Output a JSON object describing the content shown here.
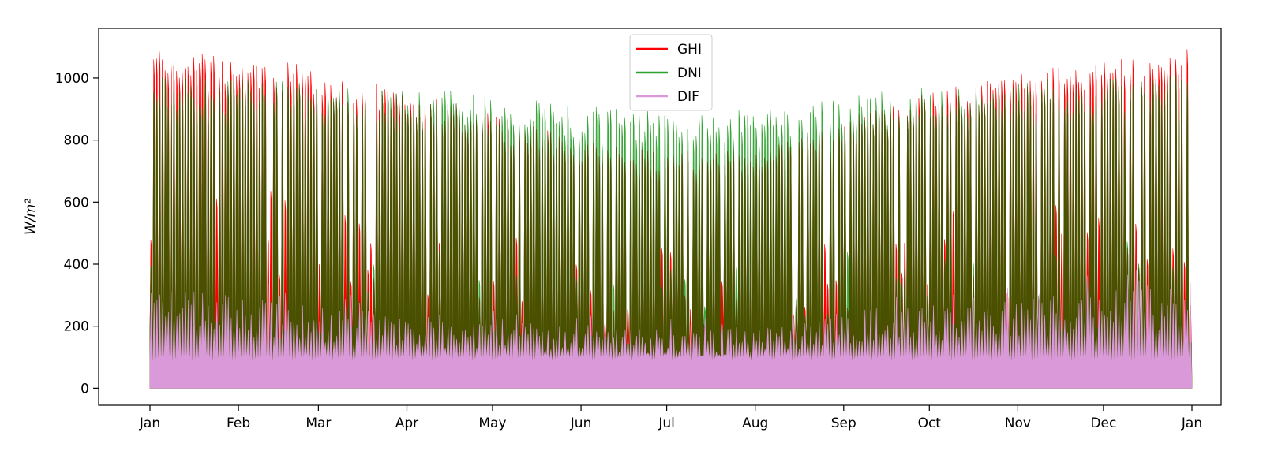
{
  "chart_data": {
    "type": "area",
    "ylabel": "W/m²",
    "xlim": [
      "Jan",
      "Jan"
    ],
    "ylim": [
      -55,
      1160
    ],
    "yticks": [
      0,
      200,
      400,
      600,
      800,
      1000
    ],
    "xticks": [
      "Jan",
      "Feb",
      "Mar",
      "Apr",
      "May",
      "Jun",
      "Jul",
      "Aug",
      "Sep",
      "Oct",
      "Nov",
      "Dec",
      "Jan"
    ],
    "grid": false,
    "legend_position": "top-center",
    "months": [
      "Jan",
      "Feb",
      "Mar",
      "Apr",
      "May",
      "Jun",
      "Jul",
      "Aug",
      "Sep",
      "Oct",
      "Nov",
      "Dec"
    ],
    "series": [
      {
        "name": "GHI",
        "color": "#ff0000",
        "monthly_peak": [
          1090,
          1060,
          990,
          920,
          840,
          780,
          760,
          810,
          920,
          990,
          1040,
          1100
        ]
      },
      {
        "name": "DNI",
        "color": "#2ca02c",
        "monthly_peak": [
          1010,
          990,
          980,
          960,
          930,
          900,
          890,
          920,
          960,
          990,
          1000,
          1010
        ]
      },
      {
        "name": "DIF",
        "color": "#da9ada",
        "monthly_peak": [
          330,
          280,
          250,
          230,
          220,
          200,
          190,
          200,
          280,
          280,
          300,
          330
        ]
      }
    ]
  }
}
